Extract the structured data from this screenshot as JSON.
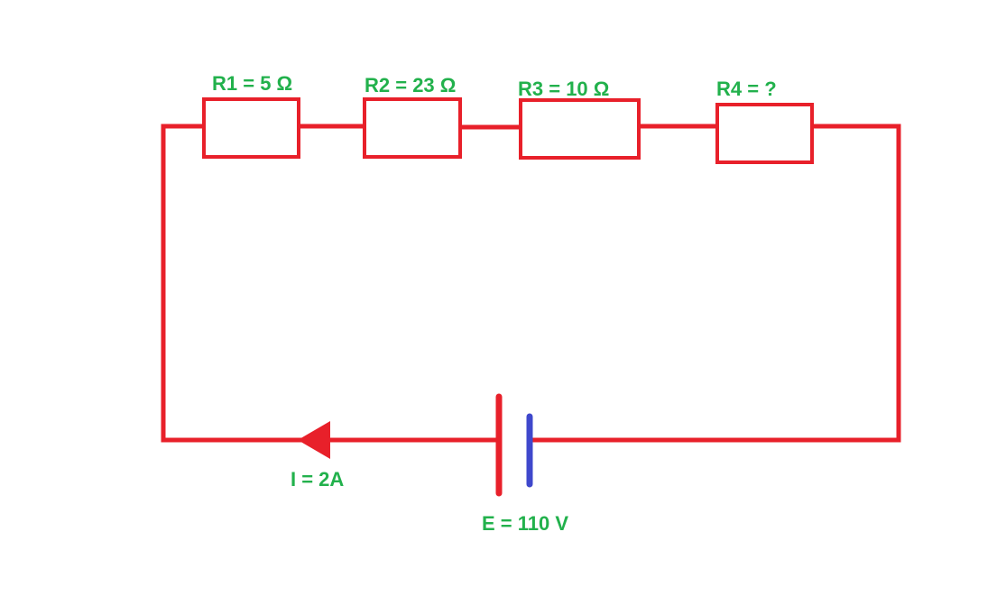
{
  "colors": {
    "wire": "#e8202a",
    "label": "#22b14c",
    "negative_plate": "#3f48cc",
    "background": "#ffffff"
  },
  "resistors": [
    {
      "id": "R1",
      "label": "R1 = 5 Ω"
    },
    {
      "id": "R2",
      "label": "R2 = 23 Ω"
    },
    {
      "id": "R3",
      "label": "R3 = 10 Ω"
    },
    {
      "id": "R4",
      "label": "R4 = ?"
    }
  ],
  "current": {
    "label": "I = 2A"
  },
  "source": {
    "label": "E = 110 V"
  }
}
